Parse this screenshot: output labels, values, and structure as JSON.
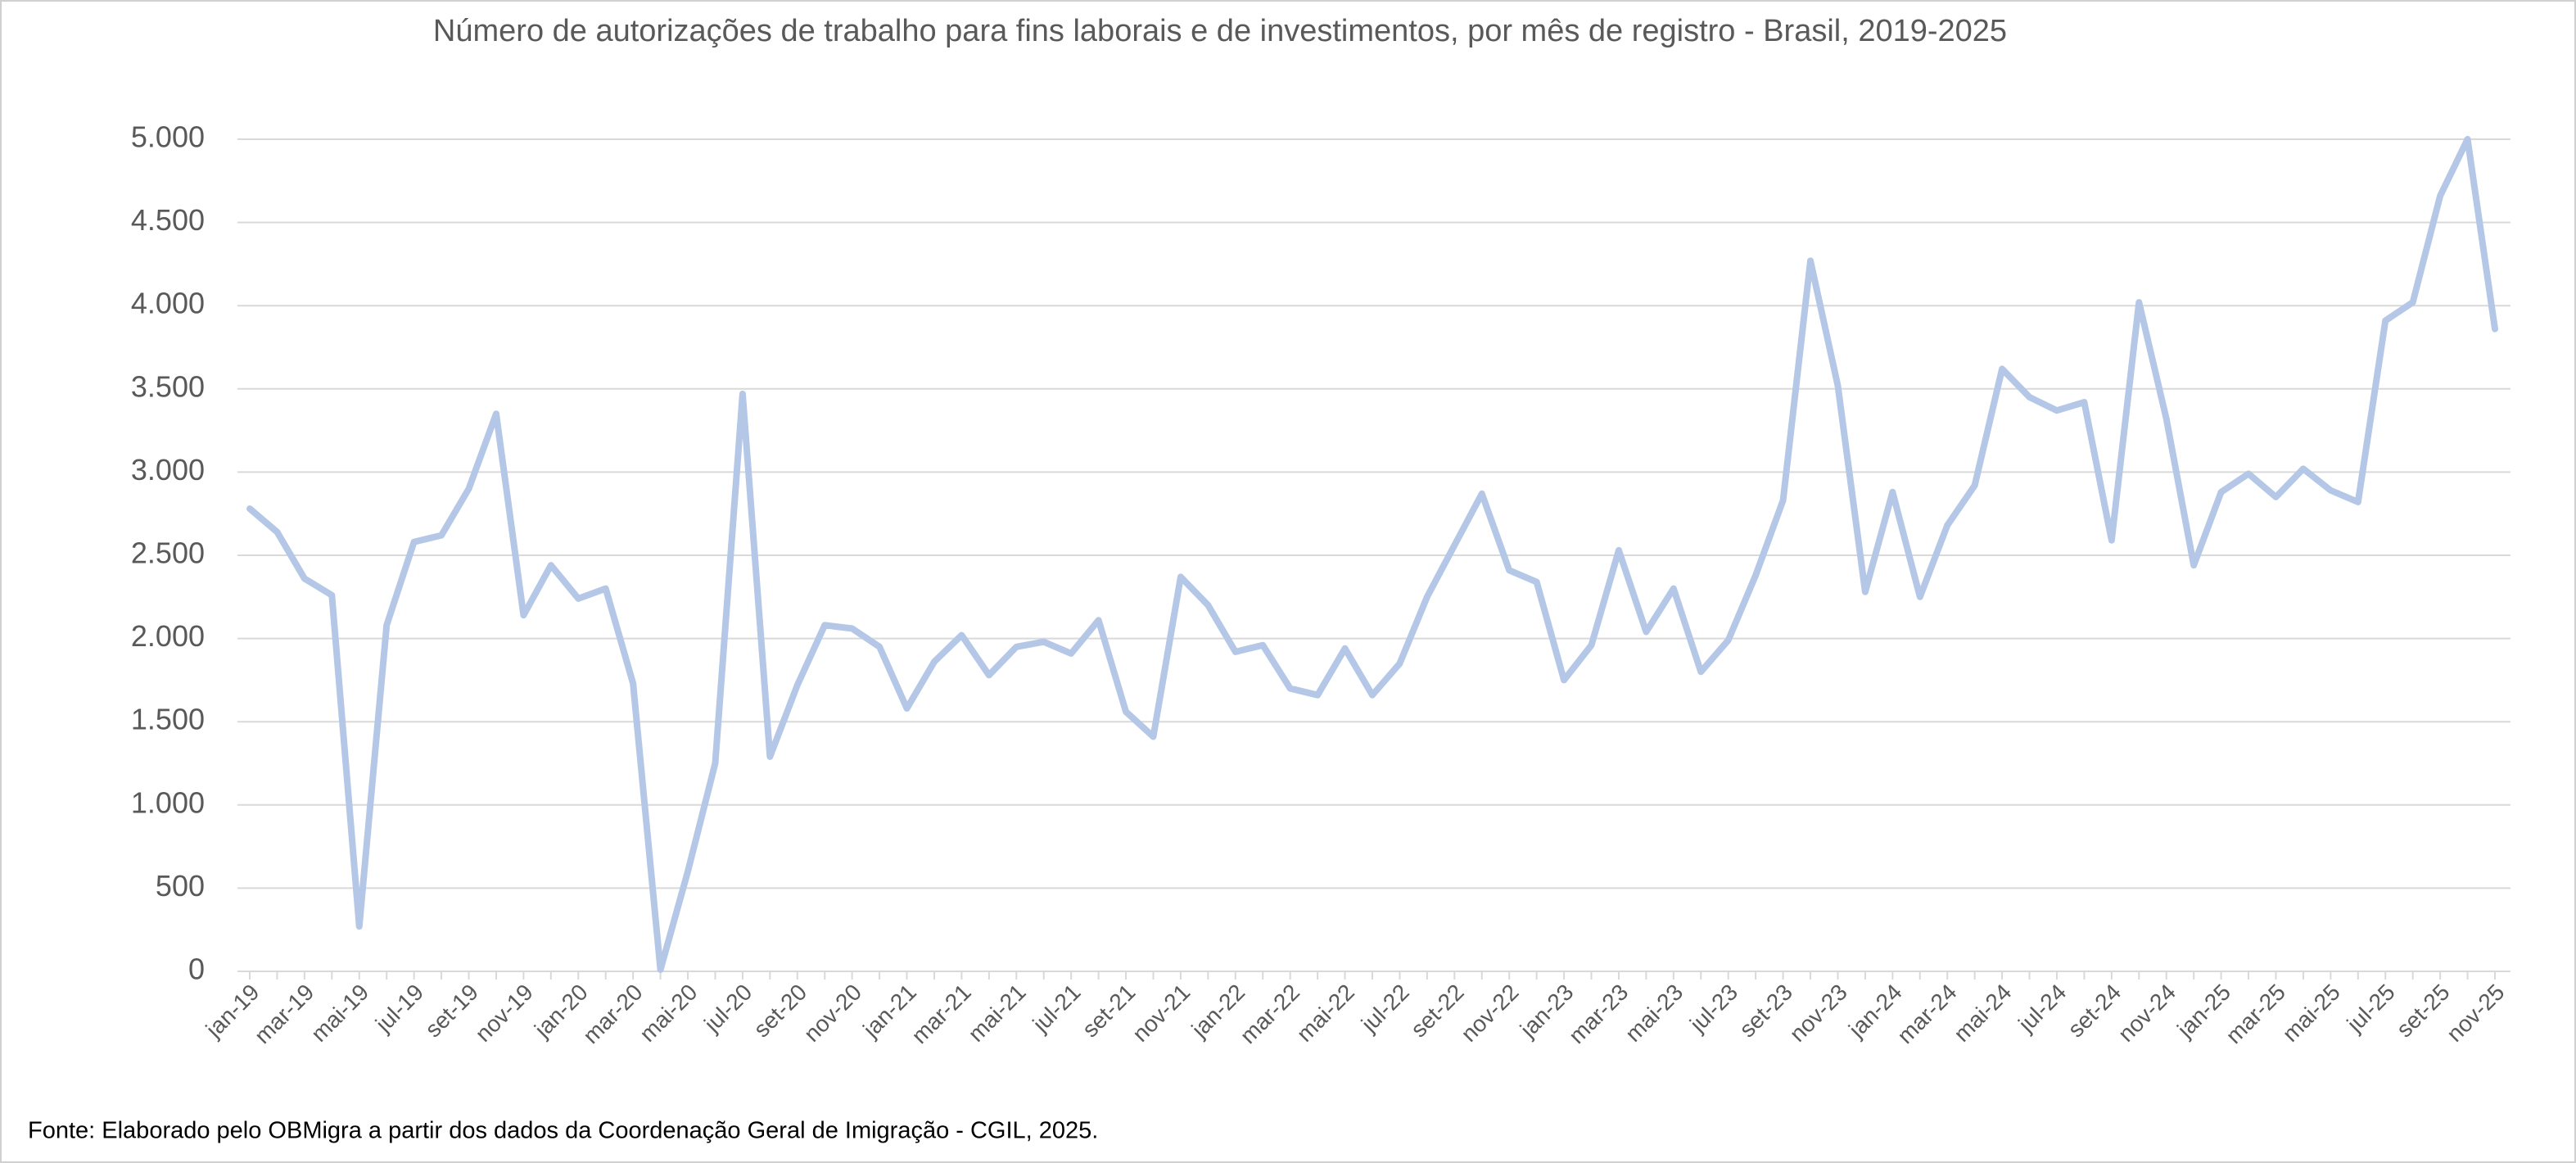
{
  "chart_data": {
    "type": "line",
    "title": "Número de autorizações de trabalho para fins laborais e de investimentos, por mês de registro - Brasil, 2019-2025",
    "source": "Fonte: Elaborado pelo OBMigra a partir dos dados da Coordenação Geral de Imigração - CGIL, 2025.",
    "categories": [
      "jan-19",
      null,
      "mar-19",
      null,
      "mai-19",
      null,
      "jul-19",
      null,
      "set-19",
      null,
      "nov-19",
      null,
      "jan-20",
      null,
      "mar-20",
      null,
      "mai-20",
      null,
      "jul-20",
      null,
      "set-20",
      null,
      "nov-20",
      null,
      "jan-21",
      null,
      "mar-21",
      null,
      "mai-21",
      null,
      "jul-21",
      null,
      "set-21",
      null,
      "nov-21",
      null,
      "jan-22",
      null,
      "mar-22",
      null,
      "mai-22",
      null,
      "jul-22",
      null,
      "set-22",
      null,
      "nov-22",
      null,
      "jan-23",
      null,
      "mar-23",
      null,
      "mai-23",
      null,
      "jul-23",
      null,
      "set-23",
      null,
      "nov-23",
      null,
      "jan-24",
      null,
      "mar-24",
      null,
      "mai-24",
      null,
      "jul-24",
      null,
      "set-24",
      null,
      "nov-24",
      null,
      "jan-25",
      null,
      "mar-25",
      null,
      "mai-25",
      null,
      "jul-25",
      null,
      "set-25",
      null,
      "nov-25"
    ],
    "values": [
      2780,
      2640,
      2360,
      2260,
      270,
      2080,
      2580,
      2620,
      2900,
      3350,
      2140,
      2440,
      2240,
      2300,
      1730,
      10,
      600,
      1250,
      3470,
      1290,
      1720,
      2080,
      2060,
      1950,
      1580,
      1860,
      2020,
      1780,
      1950,
      1980,
      1910,
      2110,
      1560,
      1410,
      2370,
      2200,
      1920,
      1960,
      1700,
      1660,
      1940,
      1660,
      1850,
      2250,
      2560,
      2870,
      2410,
      2340,
      1750,
      1960,
      2530,
      2040,
      2300,
      1800,
      1990,
      2380,
      2830,
      4270,
      3520,
      2280,
      2880,
      2250,
      2680,
      2920,
      3620,
      3450,
      3370,
      3420,
      2590,
      4020,
      3320,
      2440,
      2880,
      2990,
      2850,
      3020,
      2890,
      2820,
      3910,
      4020,
      4660,
      5000,
      3860
    ],
    "color": "#b4c7e7",
    "ylim": [
      0,
      5000
    ],
    "yticks": [
      0,
      500,
      {
        "value": 1000,
        "label": "1.000"
      },
      {
        "value": 1500,
        "label": "1.500"
      },
      {
        "value": 2000,
        "label": "2.000"
      },
      {
        "value": 2500,
        "label": "2.500"
      },
      {
        "value": 3000,
        "label": "3.000"
      },
      {
        "value": 3500,
        "label": "3.500"
      },
      {
        "value": 4000,
        "label": "4.000"
      },
      {
        "value": 4500,
        "label": "4.500"
      },
      {
        "value": 5000,
        "label": "5.000"
      }
    ],
    "grid": true
  }
}
